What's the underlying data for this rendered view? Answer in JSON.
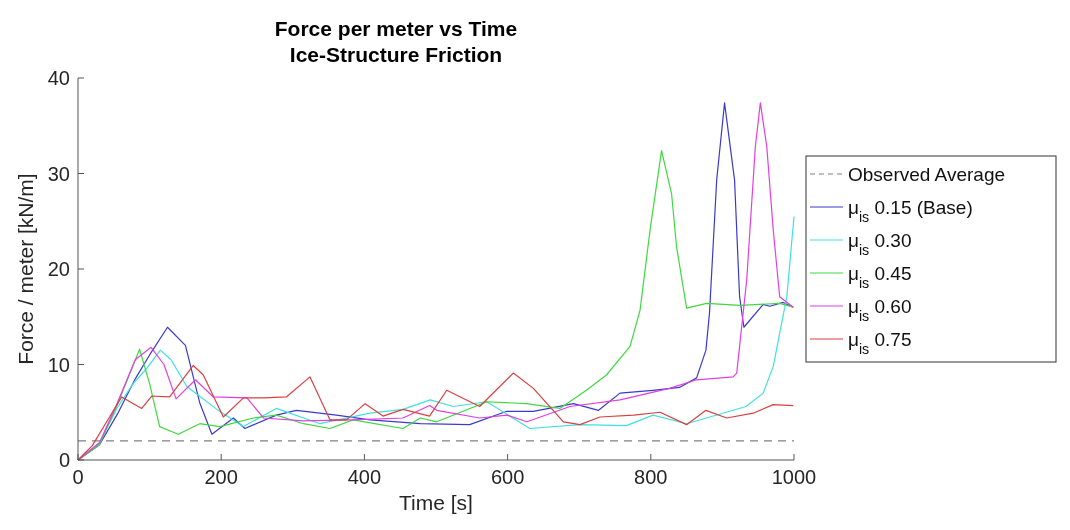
{
  "chart_data": {
    "type": "line",
    "title": "Force per meter vs Time",
    "subtitle": "Ice-Structure Friction",
    "xlabel": "Time [s]",
    "ylabel": "Force / meter [kN/m]",
    "xlim": [
      0,
      1000
    ],
    "xticks": [
      0,
      200,
      400,
      600,
      800,
      1000
    ],
    "ylim": [
      0,
      40
    ],
    "yticks": [
      0,
      10,
      20,
      30,
      40
    ],
    "grid": false,
    "legend": "right",
    "series": [
      {
        "name": "Observed Average",
        "color": "#808080",
        "line_style": "dashed",
        "x": [
          0,
          1000
        ],
        "values": [
          2,
          2
        ]
      },
      {
        "name": "μ$_{is}$ 0.15 (Base)",
        "color": "#3a3acc",
        "x": [
          0,
          30,
          55,
          80,
          100,
          125,
          150,
          170,
          187,
          217,
          233,
          277,
          305,
          361,
          408,
          478,
          547,
          599,
          636,
          692,
          727,
          757,
          803,
          840,
          864,
          877,
          882,
          892,
          903,
          917,
          924,
          930,
          957,
          966,
          985,
          999
        ],
        "values": [
          0,
          1.6,
          4.8,
          8.5,
          11,
          13.9,
          12,
          6,
          2.7,
          4.4,
          3.3,
          4.7,
          5.2,
          4.7,
          4.2,
          3.8,
          3.7,
          5.1,
          5.1,
          5.9,
          5.2,
          7.0,
          7.3,
          7.6,
          8.6,
          11.5,
          15.4,
          29.3,
          37.4,
          29.3,
          17.1,
          13.9,
          16.3,
          16.1,
          16.5,
          16.0
        ]
      },
      {
        "name": "μ$_{is}$ 0.30",
        "color": "#40e0e0",
        "x": [
          0,
          30,
          55,
          77,
          95,
          115,
          130,
          152,
          194,
          231,
          277,
          338,
          408,
          454,
          492,
          524,
          571,
          631,
          701,
          766,
          803,
          850,
          933,
          957,
          971,
          990,
          1000
        ],
        "values": [
          0,
          1.8,
          5.5,
          8.0,
          9.5,
          11.5,
          10.5,
          7.7,
          5.3,
          3.5,
          5.4,
          3.8,
          4.9,
          5.3,
          6.3,
          5.6,
          6.1,
          3.3,
          3.7,
          3.6,
          4.7,
          3.8,
          5.6,
          7.0,
          9.8,
          17.1,
          25.5
        ]
      },
      {
        "name": "μ$_{is}$ 0.45",
        "color": "#40d840",
        "x": [
          0,
          30,
          55,
          86,
          100,
          114,
          140,
          170,
          198,
          245,
          277,
          315,
          352,
          384,
          454,
          478,
          501,
          571,
          626,
          673,
          710,
          738,
          771,
          785,
          799,
          815,
          829,
          836,
          850,
          878,
          925,
          980,
          999
        ],
        "values": [
          0,
          1.6,
          5.8,
          11.6,
          8,
          3.5,
          2.7,
          3.8,
          3.5,
          4.4,
          4.7,
          3.8,
          3.3,
          4.2,
          3.3,
          4.4,
          4.0,
          6.1,
          5.9,
          5.4,
          7.3,
          8.9,
          11.9,
          15.7,
          24.1,
          32.4,
          27.9,
          22.3,
          15.9,
          16.4,
          16.2,
          16.4,
          16.0
        ]
      },
      {
        "name": "μ$_{is}$ 0.60",
        "color": "#e040e0",
        "x": [
          0,
          30,
          55,
          80,
          102,
          120,
          137,
          164,
          189,
          236,
          259,
          315,
          384,
          454,
          491,
          501,
          561,
          599,
          627,
          687,
          757,
          826,
          864,
          915,
          920,
          934,
          946,
          953,
          962,
          971,
          980,
          999
        ],
        "values": [
          0,
          1.8,
          6,
          10.5,
          11.8,
          10,
          6.4,
          8.4,
          6.6,
          6.5,
          4.4,
          4.1,
          4.2,
          4.4,
          5.7,
          5.2,
          4.4,
          4.7,
          4.0,
          5.6,
          6.3,
          7.5,
          8.4,
          8.7,
          9.1,
          18.9,
          32.8,
          37.4,
          32.8,
          24.1,
          17.1,
          16.0
        ]
      },
      {
        "name": "μ$_{is}$ 0.75",
        "color": "#d94040",
        "x": [
          0,
          20,
          40,
          61,
          89,
          103,
          128,
          161,
          175,
          203,
          231,
          259,
          291,
          324,
          352,
          375,
          401,
          426,
          454,
          491,
          515,
          561,
          608,
          636,
          678,
          701,
          729,
          776,
          813,
          850,
          877,
          906,
          943,
          971,
          999
        ],
        "values": [
          0,
          1.5,
          4,
          6.6,
          5.4,
          6.7,
          6.6,
          9.9,
          8.9,
          4.5,
          6.5,
          6.5,
          6.6,
          8.7,
          4.2,
          4.2,
          5.9,
          4.6,
          5.3,
          4.6,
          7.3,
          5.6,
          9.1,
          7.5,
          4.0,
          3.7,
          4.5,
          4.7,
          5.0,
          3.7,
          5.2,
          4.4,
          4.9,
          5.8,
          5.7
        ]
      }
    ]
  }
}
